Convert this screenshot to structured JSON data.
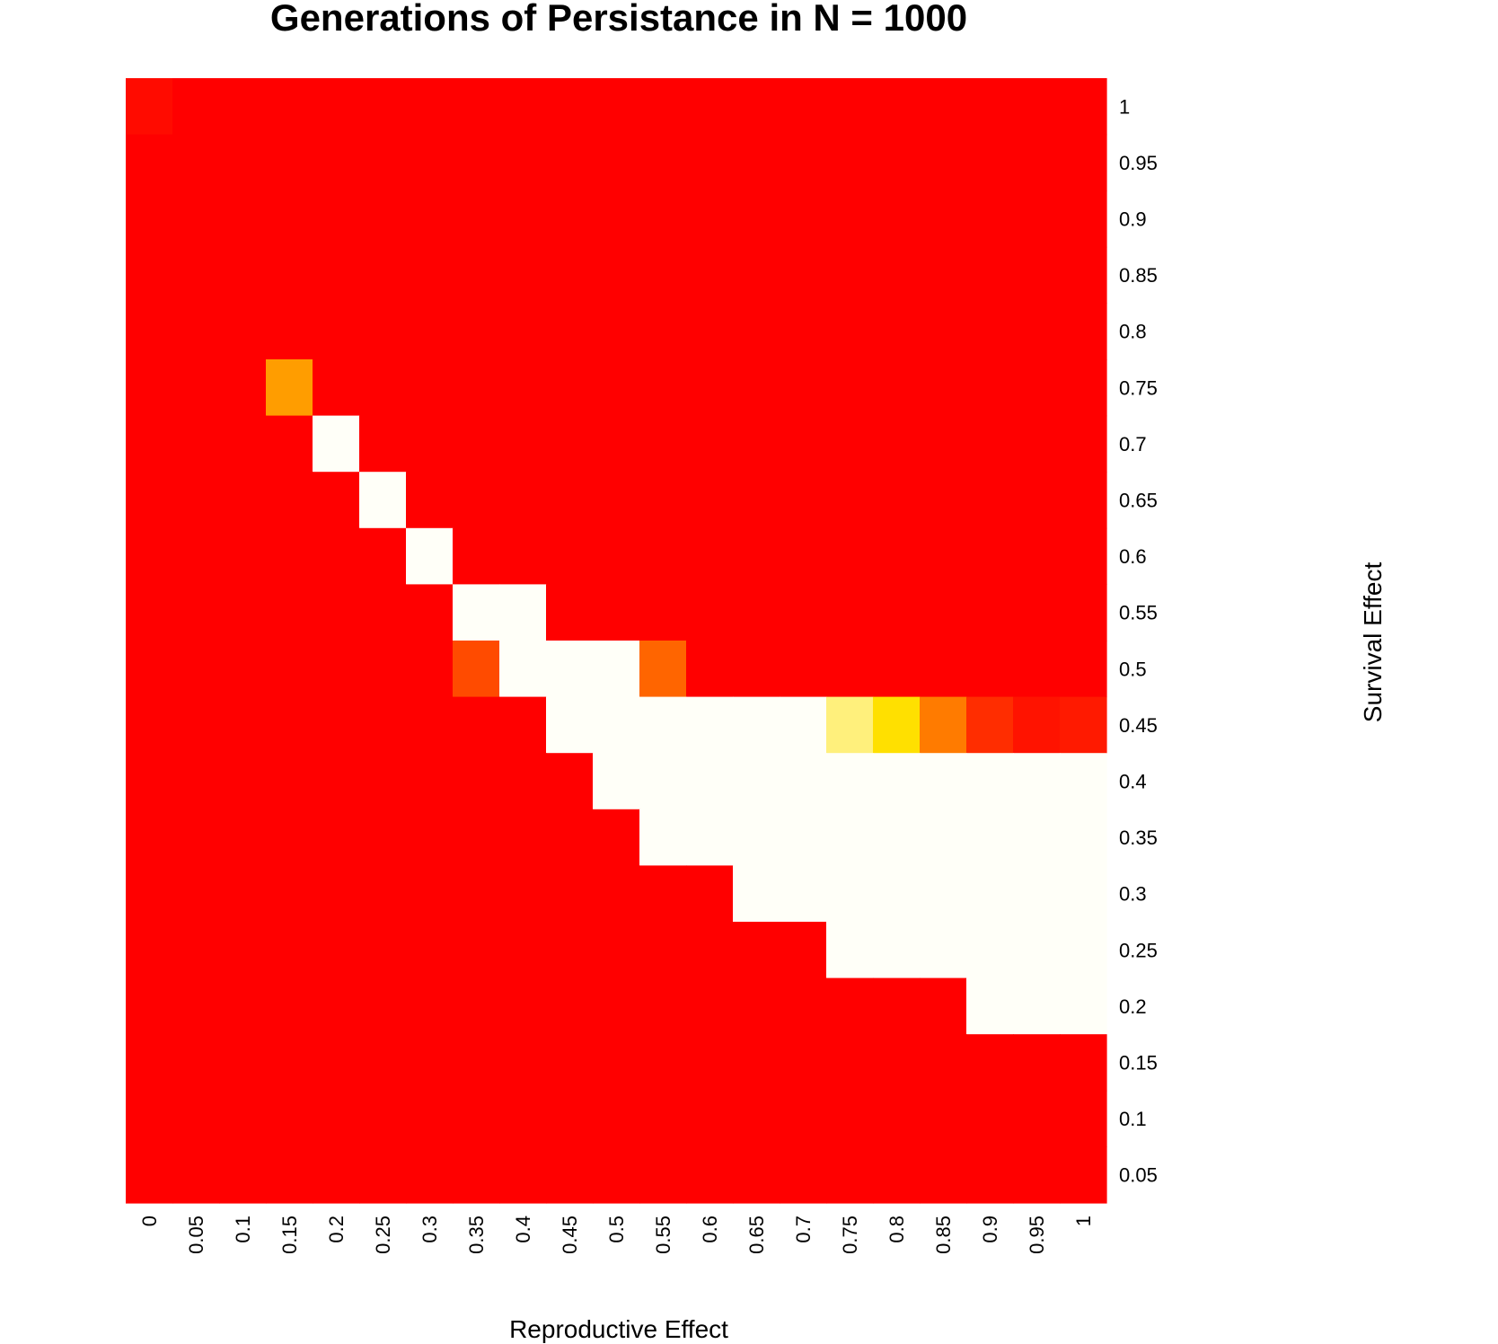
{
  "chart_data": {
    "type": "heatmap",
    "title": "Generations of Persistance in N = 1000",
    "xlabel": "Reproductive Effect",
    "ylabel": "Survival Effect",
    "x": [
      "0",
      "0.05",
      "0.1",
      "0.15",
      "0.2",
      "0.25",
      "0.3",
      "0.35",
      "0.4",
      "0.45",
      "0.5",
      "0.55",
      "0.6",
      "0.65",
      "0.7",
      "0.75",
      "0.8",
      "0.85",
      "0.9",
      "0.95",
      "1"
    ],
    "y": [
      "1",
      "0.95",
      "0.9",
      "0.85",
      "0.8",
      "0.75",
      "0.7",
      "0.65",
      "0.6",
      "0.55",
      "0.5",
      "0.45",
      "0.4",
      "0.35",
      "0.3",
      "0.25",
      "0.2",
      "0.15",
      "0.1",
      "0.05"
    ],
    "value_scale": "relative persistence, 0 = red (low) to 1 = white (high), heat palette",
    "values": [
      [
        0.03,
        0,
        0,
        0,
        0,
        0,
        0,
        0,
        0,
        0,
        0,
        0,
        0,
        0,
        0,
        0,
        0,
        0,
        0,
        0,
        0
      ],
      [
        0,
        0,
        0,
        0,
        0,
        0,
        0,
        0,
        0,
        0,
        0,
        0,
        0,
        0,
        0,
        0,
        0,
        0,
        0,
        0,
        0
      ],
      [
        0,
        0,
        0,
        0,
        0,
        0,
        0,
        0,
        0,
        0,
        0,
        0,
        0,
        0,
        0,
        0,
        0,
        0,
        0,
        0,
        0
      ],
      [
        0,
        0,
        0,
        0,
        0,
        0,
        0,
        0,
        0,
        0,
        0,
        0,
        0,
        0,
        0,
        0,
        0,
        0,
        0,
        0,
        0
      ],
      [
        0,
        0,
        0,
        0,
        0,
        0,
        0,
        0,
        0,
        0,
        0,
        0,
        0,
        0,
        0,
        0,
        0,
        0,
        0,
        0,
        0
      ],
      [
        0,
        0,
        0,
        0.42,
        0,
        0,
        0,
        0,
        0,
        0,
        0,
        0,
        0,
        0,
        0,
        0,
        0,
        0,
        0,
        0,
        0
      ],
      [
        0,
        0,
        0,
        0,
        1,
        0,
        0,
        0,
        0,
        0,
        0,
        0,
        0,
        0,
        0,
        0,
        0,
        0,
        0,
        0,
        0
      ],
      [
        0,
        0,
        0,
        0,
        0,
        1,
        0,
        0,
        0,
        0,
        0,
        0,
        0,
        0,
        0,
        0,
        0,
        0,
        0,
        0,
        0
      ],
      [
        0,
        0,
        0,
        0,
        0,
        0,
        1,
        0,
        0,
        0,
        0,
        0,
        0,
        0,
        0,
        0,
        0,
        0,
        0,
        0,
        0
      ],
      [
        0,
        0,
        0,
        0,
        0,
        0,
        0,
        1,
        1,
        0,
        0,
        0,
        0,
        0,
        0,
        0,
        0,
        0,
        0,
        0,
        0
      ],
      [
        0,
        0,
        0,
        0,
        0,
        0,
        0,
        0.2,
        1,
        1,
        1,
        0.27,
        0,
        0,
        0,
        0,
        0,
        0,
        0,
        0,
        0
      ],
      [
        0,
        0,
        0,
        0,
        0,
        0,
        0,
        0,
        0,
        1,
        1,
        1,
        1,
        1,
        1,
        0.8,
        0.6,
        0.33,
        0.12,
        0.05,
        0.07
      ],
      [
        0,
        0,
        0,
        0,
        0,
        0,
        0,
        0,
        0,
        0,
        1,
        1,
        1,
        1,
        1,
        1,
        1,
        1,
        1,
        1,
        1
      ],
      [
        0,
        0,
        0,
        0,
        0,
        0,
        0,
        0,
        0,
        0,
        0,
        1,
        1,
        1,
        1,
        1,
        1,
        1,
        1,
        1,
        1
      ],
      [
        0,
        0,
        0,
        0,
        0,
        0,
        0,
        0,
        0,
        0,
        0,
        0,
        0,
        1,
        1,
        1,
        1,
        1,
        1,
        1,
        1
      ],
      [
        0,
        0,
        0,
        0,
        0,
        0,
        0,
        0,
        0,
        0,
        0,
        0,
        0,
        0,
        0,
        1,
        1,
        1,
        1,
        1,
        1
      ],
      [
        0,
        0,
        0,
        0,
        0,
        0,
        0,
        0,
        0,
        0,
        0,
        0,
        0,
        0,
        0,
        0,
        0,
        0,
        1,
        1,
        1
      ],
      [
        0,
        0,
        0,
        0,
        0,
        0,
        0,
        0,
        0,
        0,
        0,
        0,
        0,
        0,
        0,
        0,
        0,
        0,
        0,
        0,
        0
      ],
      [
        0,
        0,
        0,
        0,
        0,
        0,
        0,
        0,
        0,
        0,
        0,
        0,
        0,
        0,
        0,
        0,
        0,
        0,
        0,
        0,
        0
      ],
      [
        0,
        0,
        0,
        0,
        0,
        0,
        0,
        0,
        0,
        0,
        0,
        0,
        0,
        0,
        0,
        0,
        0,
        0,
        0,
        0,
        0
      ]
    ],
    "grid": false,
    "legend": "none",
    "colors": {
      "low": "#ff0000",
      "mid": "#ffe000",
      "high": "#fffff8"
    }
  }
}
